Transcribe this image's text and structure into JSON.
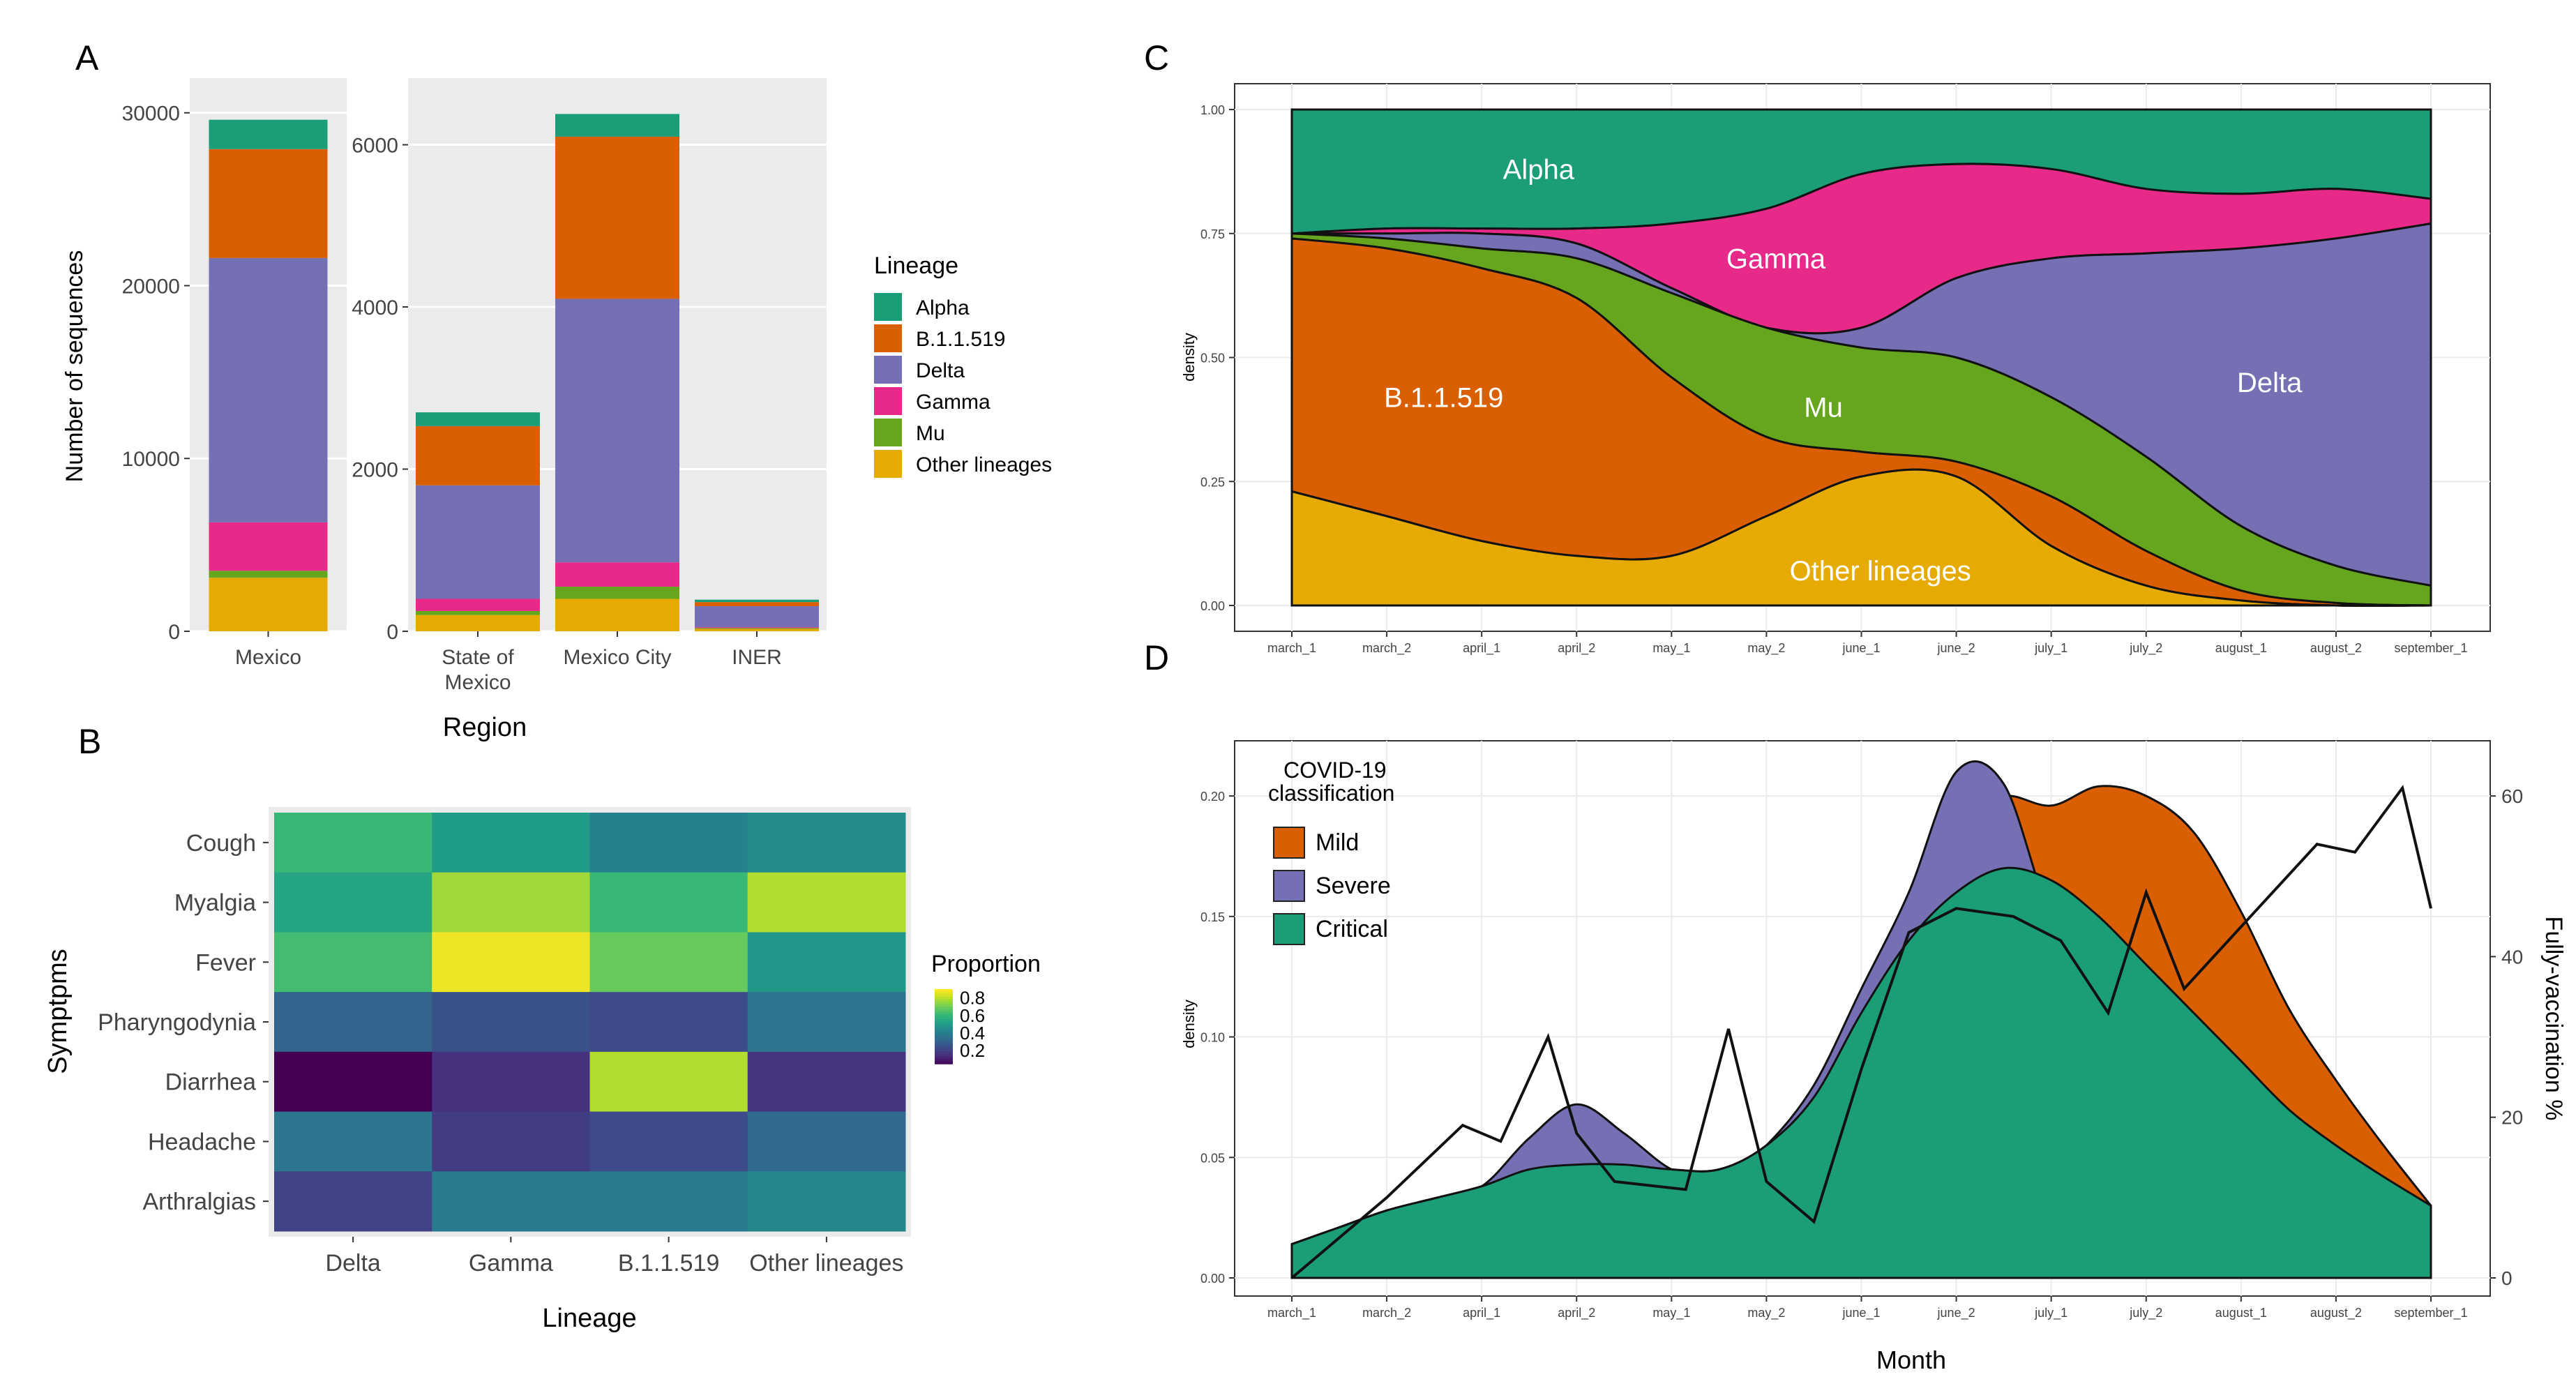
{
  "panels": [
    "A",
    "B",
    "C",
    "D"
  ],
  "colors": {
    "Alpha": "#1b9e77",
    "B.1.1.519": "#d95f02",
    "Delta": "#7570b3",
    "Gamma": "#e7298a",
    "Mu": "#66a61e",
    "Other lineages": "#e6ab02",
    "grid": "#ebebeb",
    "panel_bg": "#ebebeb",
    "axis": "#333333"
  },
  "chart_data": [
    {
      "id": "A",
      "type": "bar",
      "stacked": true,
      "xlabel": "Region",
      "ylabel": "Number of sequences",
      "legend_title": "Lineage",
      "legend_items": [
        "Alpha",
        "B.1.1.519",
        "Delta",
        "Gamma",
        "Mu",
        "Other  lineages"
      ],
      "stack_order": [
        "Other lineages",
        "Mu",
        "Gamma",
        "Delta",
        "B.1.1.519",
        "Alpha"
      ],
      "facets": [
        {
          "categories": [
            "Mexico"
          ],
          "category_labels": [
            [
              "Mexico"
            ]
          ],
          "ylim": [
            0,
            31200
          ],
          "yticks": [
            0,
            10000,
            20000,
            30000
          ],
          "series": [
            {
              "name": "Other lineages",
              "values": [
                3100
              ]
            },
            {
              "name": "Mu",
              "values": [
                400
              ]
            },
            {
              "name": "Gamma",
              "values": [
                2800
              ]
            },
            {
              "name": "Delta",
              "values": [
                15300
              ]
            },
            {
              "name": "B.1.1.519",
              "values": [
                6300
              ]
            },
            {
              "name": "Alpha",
              "values": [
                1700
              ]
            }
          ]
        },
        {
          "categories": [
            "State of Mexico",
            "Mexico City",
            "INER"
          ],
          "category_labels": [
            [
              "State of",
              "Mexico"
            ],
            [
              "Mexico City"
            ],
            [
              "INER"
            ]
          ],
          "ylim": [
            0,
            6650
          ],
          "yticks": [
            0,
            2000,
            4000,
            6000
          ],
          "series": [
            {
              "name": "Other lineages",
              "values": [
                200,
                400,
                30
              ]
            },
            {
              "name": "Mu",
              "values": [
                50,
                150,
                10
              ]
            },
            {
              "name": "Gamma",
              "values": [
                150,
                300,
                10
              ]
            },
            {
              "name": "Delta",
              "values": [
                1400,
                3250,
                260
              ]
            },
            {
              "name": "B.1.1.519",
              "values": [
                730,
                2000,
                50
              ]
            },
            {
              "name": "Alpha",
              "values": [
                170,
                280,
                30
              ]
            }
          ]
        }
      ]
    },
    {
      "id": "B",
      "type": "heatmap",
      "xlabel": "Lineage",
      "ylabel": "Symptpms",
      "x": [
        "Delta",
        "Gamma",
        "B.1.1.519",
        "Other lineages"
      ],
      "y": [
        "Cough",
        "Myalgia",
        "Fever",
        "Pharyngodynia",
        "Diarrhea",
        "Headache",
        "Arthralgias"
      ],
      "values": [
        [
          0.62,
          0.52,
          0.42,
          0.46
        ],
        [
          0.55,
          0.78,
          0.62,
          0.8
        ],
        [
          0.64,
          0.88,
          0.7,
          0.5
        ],
        [
          0.32,
          0.26,
          0.24,
          0.38
        ],
        [
          0.05,
          0.17,
          0.8,
          0.18
        ],
        [
          0.38,
          0.2,
          0.24,
          0.34
        ],
        [
          0.22,
          0.4,
          0.4,
          0.44
        ]
      ],
      "legend_title": "Proportion",
      "legend_ticks": [
        "0.8",
        "0.6",
        "0.4",
        "0.2"
      ],
      "range": [
        0.05,
        0.9
      ]
    },
    {
      "id": "C",
      "type": "area",
      "stacked": true,
      "ylabel": "density",
      "x": [
        "march_1",
        "march_2",
        "april_1",
        "april_2",
        "may_1",
        "may_2",
        "june_1",
        "june_2",
        "july_1",
        "july_2",
        "august_1",
        "august_2",
        "september_1"
      ],
      "ylim": [
        0,
        1
      ],
      "yticks": [
        "0.00",
        "0.25",
        "0.50",
        "0.75",
        "1.00"
      ],
      "boundaries": {
        "Other lineages": [
          0.23,
          0.18,
          0.13,
          0.1,
          0.1,
          0.18,
          0.26,
          0.26,
          0.12,
          0.04,
          0.01,
          0.0,
          0.0
        ],
        "B.1.1.519": [
          0.74,
          0.72,
          0.68,
          0.62,
          0.46,
          0.34,
          0.31,
          0.29,
          0.22,
          0.11,
          0.03,
          0.005,
          0.0
        ],
        "Mu": [
          0.75,
          0.74,
          0.72,
          0.7,
          0.63,
          0.56,
          0.52,
          0.5,
          0.42,
          0.3,
          0.16,
          0.08,
          0.04
        ],
        "Delta": [
          0.75,
          0.75,
          0.75,
          0.73,
          0.64,
          0.56,
          0.56,
          0.66,
          0.7,
          0.71,
          0.72,
          0.74,
          0.77
        ],
        "Gamma": [
          0.75,
          0.76,
          0.76,
          0.76,
          0.77,
          0.8,
          0.87,
          0.89,
          0.88,
          0.84,
          0.83,
          0.84,
          0.82
        ],
        "Alpha": [
          1.0,
          1.0,
          1.0,
          1.0,
          1.0,
          1.0,
          1.0,
          1.0,
          1.0,
          1.0,
          1.0,
          1.0,
          1.0
        ]
      },
      "area_labels": [
        {
          "name": "Alpha",
          "text": "Alpha",
          "x": 2.6,
          "y": 0.88
        },
        {
          "name": "Gamma",
          "text": "Gamma",
          "x": 5.1,
          "y": 0.7
        },
        {
          "name": "B.1.1.519",
          "text": "B.1.1.519",
          "x": 1.6,
          "y": 0.42
        },
        {
          "name": "Mu",
          "text": "Mu",
          "x": 5.6,
          "y": 0.4
        },
        {
          "name": "Delta",
          "text": "Delta",
          "x": 10.3,
          "y": 0.45
        },
        {
          "name": "Other lineages",
          "text": "Other lineages",
          "x": 6.2,
          "y": 0.07
        }
      ]
    },
    {
      "id": "D",
      "type": "area",
      "xlabel": "Month",
      "ylabel": "density",
      "y2label": "Fully-vaccination %",
      "x": [
        "march_1",
        "march_2",
        "april_1",
        "april_2",
        "may_1",
        "may_2",
        "june_1",
        "june_2",
        "july_1",
        "july_2",
        "august_1",
        "august_2",
        "september_1"
      ],
      "ylim": [
        0,
        0.22
      ],
      "yticks": [
        "0.00",
        "0.05",
        "0.10",
        "0.15",
        "0.20"
      ],
      "y2lim": [
        0,
        66
      ],
      "y2ticks": [
        "0",
        "20",
        "40",
        "60"
      ],
      "legend_title": [
        "COVID-19",
        "classification"
      ],
      "legend_items": [
        "Mild",
        "Severe",
        "Critical"
      ],
      "legend_colors": [
        "#d95f02",
        "#7570b3",
        "#1b9e77"
      ],
      "density": {
        "x": [
          0,
          0.5,
          1,
          1.5,
          2,
          2.5,
          3,
          3.5,
          4,
          4.5,
          5,
          5.5,
          6,
          6.5,
          7,
          7.5,
          8,
          8.5,
          9,
          9.5,
          10,
          10.5,
          11,
          11.5,
          12
        ],
        "Mild": [
          0.014,
          0.021,
          0.028,
          0.033,
          0.038,
          0.045,
          0.047,
          0.047,
          0.045,
          0.045,
          0.055,
          0.075,
          0.11,
          0.15,
          0.19,
          0.2,
          0.196,
          0.204,
          0.2,
          0.185,
          0.152,
          0.112,
          0.082,
          0.055,
          0.03
        ],
        "Severe": [
          0.014,
          0.021,
          0.028,
          0.033,
          0.038,
          0.058,
          0.072,
          0.06,
          0.045,
          0.04,
          0.055,
          0.08,
          0.12,
          0.16,
          0.21,
          0.205,
          0.15,
          0.13,
          0.11,
          0.09,
          0.075,
          0.062,
          0.05,
          0.04,
          0.03
        ],
        "Critical": [
          0.014,
          0.021,
          0.028,
          0.033,
          0.038,
          0.045,
          0.047,
          0.047,
          0.045,
          0.045,
          0.055,
          0.075,
          0.11,
          0.14,
          0.16,
          0.17,
          0.165,
          0.15,
          0.13,
          0.11,
          0.09,
          0.07,
          0.055,
          0.042,
          0.03
        ]
      },
      "vaccination": {
        "x": [
          0,
          1,
          1.8,
          2.2,
          2.7,
          3.0,
          3.4,
          4.15,
          4.6,
          5.0,
          5.5,
          6.0,
          6.5,
          7.0,
          7.6,
          8.1,
          8.6,
          9.0,
          9.4,
          10.1,
          10.8,
          11.2,
          11.7,
          12
        ],
        "values": [
          0,
          10,
          19,
          17,
          30,
          18,
          12,
          11,
          31,
          12,
          7,
          26,
          43,
          46,
          45,
          42,
          33,
          48,
          36,
          45,
          54,
          53,
          61,
          46
        ]
      }
    }
  ]
}
